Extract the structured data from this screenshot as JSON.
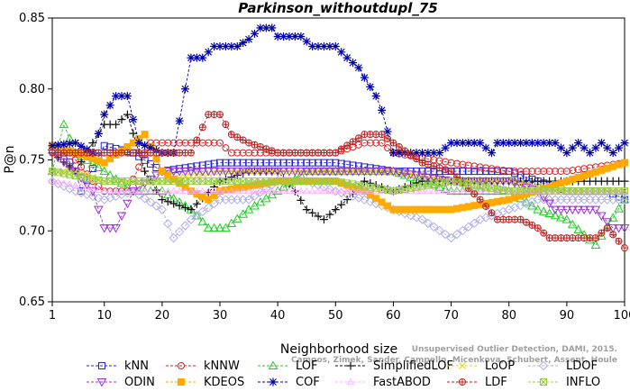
{
  "chart_data": {
    "type": "line",
    "title": "Parkinson_withoutdupl_75",
    "xlabel": "Neighborhood size",
    "ylabel": "P@n",
    "xlim": [
      1,
      100
    ],
    "ylim": [
      0.65,
      0.85
    ],
    "xticks": [
      "1",
      "10",
      "20",
      "30",
      "40",
      "50",
      "60",
      "70",
      "80",
      "90",
      "100"
    ],
    "yticks": [
      "0.65",
      "0.70",
      "0.75",
      "0.80",
      "0.85"
    ],
    "watermark": [
      "Unsupervised Outlier Detection, DAMI, 2015.",
      "Campos, Zimek, Sander, Campello, Micenkova, Schubert, Assent, Houle"
    ],
    "legend_position": "bottom",
    "series": [
      {
        "name": "kNN",
        "color": "#2222dd",
        "marker": "square",
        "points": [
          [
            1,
            0.76
          ],
          [
            3,
            0.755
          ],
          [
            5,
            0.742
          ],
          [
            6,
            0.728
          ],
          [
            10,
            0.76
          ],
          [
            15,
            0.755
          ],
          [
            20,
            0.742
          ],
          [
            30,
            0.748
          ],
          [
            40,
            0.748
          ],
          [
            50,
            0.748
          ],
          [
            60,
            0.742
          ],
          [
            70,
            0.742
          ],
          [
            80,
            0.742
          ],
          [
            90,
            0.728
          ],
          [
            97,
            0.728
          ],
          [
            100,
            0.722
          ]
        ]
      },
      {
        "name": "kNNW",
        "color": "#dd2222",
        "marker": "circle",
        "points": [
          [
            1,
            0.76
          ],
          [
            4,
            0.755
          ],
          [
            8,
            0.735
          ],
          [
            10,
            0.728
          ],
          [
            14,
            0.728
          ],
          [
            18,
            0.762
          ],
          [
            30,
            0.762
          ],
          [
            32,
            0.755
          ],
          [
            50,
            0.755
          ],
          [
            55,
            0.762
          ],
          [
            58,
            0.762
          ],
          [
            60,
            0.755
          ],
          [
            70,
            0.748
          ],
          [
            80,
            0.742
          ],
          [
            90,
            0.742
          ],
          [
            100,
            0.748
          ]
        ]
      },
      {
        "name": "LOF",
        "color": "#22cc22",
        "marker": "triangle",
        "points": [
          [
            1,
            0.742
          ],
          [
            3,
            0.775
          ],
          [
            5,
            0.755
          ],
          [
            10,
            0.742
          ],
          [
            15,
            0.728
          ],
          [
            20,
            0.728
          ],
          [
            25,
            0.715
          ],
          [
            28,
            0.702
          ],
          [
            31,
            0.702
          ],
          [
            35,
            0.715
          ],
          [
            40,
            0.728
          ],
          [
            45,
            0.742
          ],
          [
            50,
            0.742
          ],
          [
            55,
            0.742
          ],
          [
            60,
            0.742
          ],
          [
            65,
            0.735
          ],
          [
            70,
            0.728
          ],
          [
            80,
            0.728
          ],
          [
            85,
            0.715
          ],
          [
            90,
            0.708
          ],
          [
            95,
            0.69
          ],
          [
            100,
            0.722
          ]
        ]
      },
      {
        "name": "SimplifiedLOF",
        "color": "#111111",
        "marker": "plus",
        "points": [
          [
            1,
            0.755
          ],
          [
            5,
            0.742
          ],
          [
            8,
            0.762
          ],
          [
            10,
            0.775
          ],
          [
            12,
            0.775
          ],
          [
            14,
            0.782
          ],
          [
            17,
            0.742
          ],
          [
            20,
            0.722
          ],
          [
            25,
            0.715
          ],
          [
            30,
            0.735
          ],
          [
            35,
            0.742
          ],
          [
            40,
            0.742
          ],
          [
            43,
            0.728
          ],
          [
            45,
            0.715
          ],
          [
            48,
            0.708
          ],
          [
            52,
            0.722
          ],
          [
            55,
            0.735
          ],
          [
            60,
            0.728
          ],
          [
            65,
            0.735
          ],
          [
            70,
            0.735
          ]
        ]
      },
      {
        "name": "LoOP",
        "color": "#dddd22",
        "marker": "x",
        "points": [
          [
            1,
            0.742
          ],
          [
            5,
            0.742
          ],
          [
            10,
            0.735
          ],
          [
            15,
            0.735
          ],
          [
            20,
            0.735
          ],
          [
            30,
            0.742
          ],
          [
            40,
            0.742
          ],
          [
            50,
            0.742
          ],
          [
            60,
            0.742
          ],
          [
            70,
            0.735
          ],
          [
            80,
            0.735
          ],
          [
            90,
            0.728
          ],
          [
            100,
            0.728
          ]
        ]
      },
      {
        "name": "LDOF",
        "color": "#b0b0ee",
        "marker": "diamond",
        "points": [
          [
            1,
            0.735
          ],
          [
            5,
            0.728
          ],
          [
            10,
            0.722
          ],
          [
            15,
            0.728
          ],
          [
            20,
            0.715
          ],
          [
            22,
            0.695
          ],
          [
            25,
            0.708
          ],
          [
            30,
            0.722
          ],
          [
            35,
            0.722
          ],
          [
            40,
            0.735
          ],
          [
            45,
            0.735
          ],
          [
            50,
            0.728
          ],
          [
            55,
            0.722
          ],
          [
            60,
            0.715
          ],
          [
            65,
            0.708
          ],
          [
            70,
            0.695
          ],
          [
            75,
            0.708
          ],
          [
            80,
            0.715
          ],
          [
            85,
            0.722
          ],
          [
            90,
            0.722
          ],
          [
            100,
            0.722
          ]
        ]
      },
      {
        "name": "ODIN",
        "color": "#9933cc",
        "marker": "triangle-down",
        "points": [
          [
            1,
            0.755
          ],
          [
            5,
            0.742
          ],
          [
            8,
            0.728
          ],
          [
            10,
            0.702
          ],
          [
            12,
            0.702
          ],
          [
            15,
            0.728
          ],
          [
            20,
            0.742
          ],
          [
            30,
            0.742
          ],
          [
            40,
            0.742
          ],
          [
            50,
            0.742
          ],
          [
            60,
            0.742
          ],
          [
            70,
            0.735
          ],
          [
            80,
            0.735
          ],
          [
            85,
            0.728
          ],
          [
            88,
            0.715
          ],
          [
            95,
            0.715
          ],
          [
            98,
            0.702
          ],
          [
            100,
            0.702
          ]
        ]
      },
      {
        "name": "KDEOS",
        "color": "#ffaa00",
        "marker": "square-filled",
        "points": [
          [
            1,
            0.76
          ],
          [
            5,
            0.755
          ],
          [
            10,
            0.748
          ],
          [
            15,
            0.762
          ],
          [
            17,
            0.768
          ],
          [
            20,
            0.742
          ],
          [
            25,
            0.728
          ],
          [
            28,
            0.722
          ],
          [
            30,
            0.728
          ],
          [
            40,
            0.735
          ],
          [
            50,
            0.735
          ],
          [
            55,
            0.728
          ],
          [
            60,
            0.715
          ],
          [
            70,
            0.715
          ],
          [
            80,
            0.722
          ],
          [
            90,
            0.735
          ],
          [
            100,
            0.748
          ]
        ]
      },
      {
        "name": "COF",
        "color": "#0000aa",
        "marker": "star",
        "points": [
          [
            1,
            0.76
          ],
          [
            5,
            0.762
          ],
          [
            8,
            0.755
          ],
          [
            10,
            0.782
          ],
          [
            12,
            0.795
          ],
          [
            14,
            0.795
          ],
          [
            16,
            0.762
          ],
          [
            20,
            0.755
          ],
          [
            22,
            0.755
          ],
          [
            24,
            0.8
          ],
          [
            25,
            0.822
          ],
          [
            27,
            0.822
          ],
          [
            29,
            0.83
          ],
          [
            33,
            0.83
          ],
          [
            35,
            0.835
          ],
          [
            37,
            0.843
          ],
          [
            39,
            0.843
          ],
          [
            40,
            0.837
          ],
          [
            44,
            0.837
          ],
          [
            46,
            0.83
          ],
          [
            50,
            0.83
          ],
          [
            52,
            0.822
          ],
          [
            54,
            0.815
          ],
          [
            55,
            0.808
          ],
          [
            57,
            0.795
          ],
          [
            58,
            0.785
          ],
          [
            60,
            0.755
          ],
          [
            68,
            0.755
          ],
          [
            70,
            0.762
          ],
          [
            75,
            0.762
          ],
          [
            77,
            0.755
          ],
          [
            78,
            0.762
          ],
          [
            88,
            0.762
          ],
          [
            90,
            0.755
          ],
          [
            92,
            0.762
          ],
          [
            94,
            0.755
          ],
          [
            96,
            0.762
          ],
          [
            98,
            0.755
          ],
          [
            100,
            0.762
          ]
        ]
      },
      {
        "name": "FastABOD",
        "color": "#ffaaff",
        "marker": "triangle-open",
        "points": [
          [
            1,
            0.735
          ],
          [
            10,
            0.728
          ],
          [
            20,
            0.728
          ],
          [
            30,
            0.728
          ],
          [
            40,
            0.728
          ],
          [
            50,
            0.728
          ],
          [
            60,
            0.728
          ],
          [
            70,
            0.728
          ],
          [
            80,
            0.728
          ],
          [
            90,
            0.728
          ],
          [
            100,
            0.728
          ]
        ]
      },
      {
        "name": "LDF",
        "color": "#bb2222",
        "marker": "circle-plus",
        "points": [
          [
            1,
            0.755
          ],
          [
            10,
            0.755
          ],
          [
            20,
            0.755
          ],
          [
            25,
            0.755
          ],
          [
            28,
            0.782
          ],
          [
            30,
            0.782
          ],
          [
            32,
            0.768
          ],
          [
            35,
            0.762
          ],
          [
            40,
            0.755
          ],
          [
            50,
            0.755
          ],
          [
            55,
            0.768
          ],
          [
            58,
            0.768
          ],
          [
            60,
            0.762
          ],
          [
            65,
            0.748
          ],
          [
            70,
            0.742
          ],
          [
            75,
            0.722
          ],
          [
            78,
            0.708
          ],
          [
            82,
            0.708
          ],
          [
            85,
            0.702
          ],
          [
            87,
            0.695
          ],
          [
            92,
            0.695
          ],
          [
            95,
            0.695
          ],
          [
            97,
            0.702
          ],
          [
            100,
            0.688
          ]
        ]
      },
      {
        "name": "INFLO",
        "color": "#99cc44",
        "marker": "box-x",
        "points": [
          [
            1,
            0.742
          ],
          [
            10,
            0.735
          ],
          [
            20,
            0.735
          ],
          [
            30,
            0.735
          ],
          [
            40,
            0.735
          ],
          [
            50,
            0.735
          ],
          [
            60,
            0.728
          ],
          [
            70,
            0.735
          ],
          [
            80,
            0.728
          ],
          [
            90,
            0.728
          ],
          [
            100,
            0.728
          ]
        ]
      }
    ]
  }
}
